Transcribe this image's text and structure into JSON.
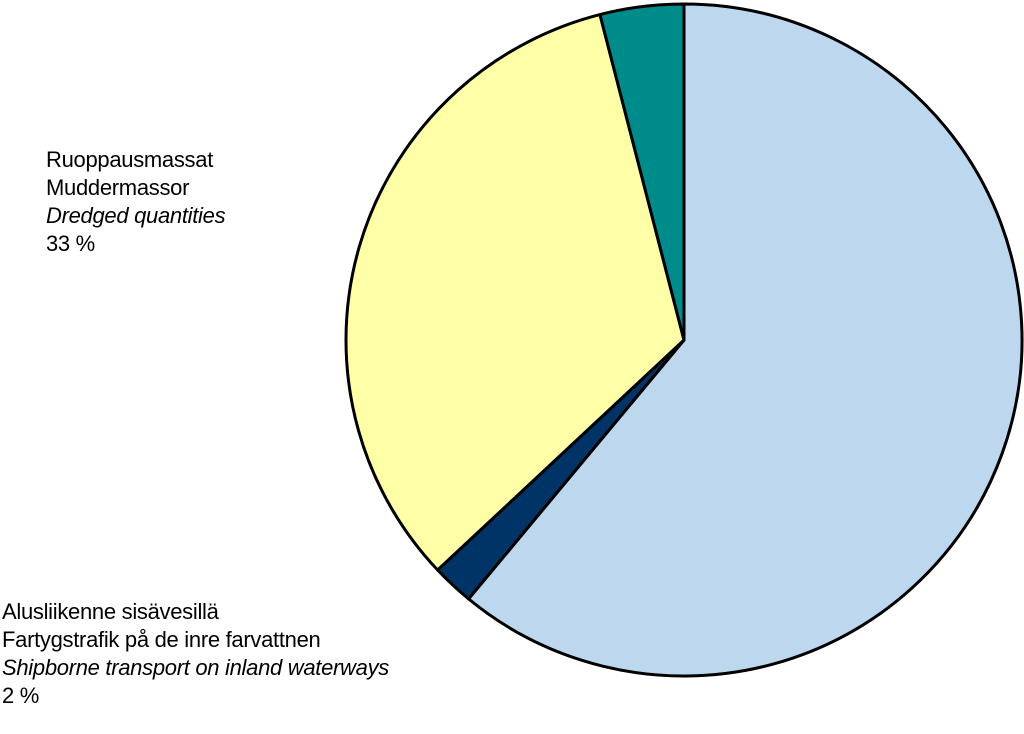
{
  "chart_data": {
    "type": "pie",
    "title": "",
    "slices": [
      {
        "label_fi": "",
        "label_sv": "",
        "label_en": "",
        "value": 61,
        "color": "#BDD7EE"
      },
      {
        "label_fi": "Alusliikenne sisävesillä",
        "label_sv": "Fartygstrafik på de inre farvattnen",
        "label_en": "Shipborne transport on inland waterways",
        "value": 2,
        "value_text": "2 %",
        "color": "#003366"
      },
      {
        "label_fi": "Ruoppausmassat",
        "label_sv": "Muddermassor",
        "label_en": "Dredged quantities",
        "value": 33,
        "value_text": "33 %",
        "color": "#FFFFA8"
      },
      {
        "label_fi": "",
        "label_sv": "",
        "label_en": "",
        "value": 4,
        "color": "#008B8B"
      }
    ],
    "start_angle": "12 o'clock",
    "direction": "clockwise",
    "outline_color": "#000000"
  }
}
